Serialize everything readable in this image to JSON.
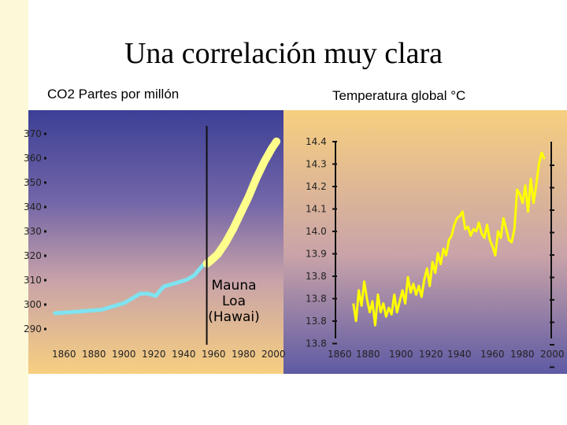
{
  "title": "Una correlación muy clara",
  "chart_data": [
    {
      "type": "line",
      "title": "CO2 Partes por millón",
      "xlabel": "",
      "ylabel": "",
      "x_ticks": [
        "1860",
        "1880",
        "1900",
        "1920",
        "1940",
        "1960",
        "1980",
        "2000"
      ],
      "y_ticks": [
        "370",
        "360",
        "350",
        "340",
        "330",
        "320",
        "310",
        "300",
        "290"
      ],
      "xlim": [
        1855,
        2005
      ],
      "ylim": [
        287,
        373
      ],
      "annotation": "Mauna Loa (Hawai)",
      "marker_year": 1958,
      "series": [
        {
          "name": "ice_core",
          "color": "#7fe3f0",
          "x": [
            1860,
            1870,
            1880,
            1890,
            1900,
            1905,
            1910,
            1915,
            1920,
            1925,
            1930,
            1935,
            1940,
            1945,
            1950,
            1955,
            1958
          ],
          "y": [
            294.5,
            295,
            295.5,
            296,
            298,
            299,
            301,
            303,
            303,
            302,
            306,
            307,
            308,
            309,
            311,
            315,
            317
          ]
        },
        {
          "name": "mauna_loa",
          "color": "#ffff8c",
          "x": [
            1958,
            1960,
            1965,
            1970,
            1975,
            1980,
            1985,
            1990,
            1995,
            2000,
            2003
          ],
          "y": [
            316,
            317,
            320,
            325,
            331,
            338,
            345,
            353,
            360,
            366,
            369
          ]
        }
      ]
    },
    {
      "type": "line",
      "title": "Temperatura global °C",
      "xlabel": "",
      "ylabel": "",
      "x_ticks": [
        "1860",
        "1880",
        "1900",
        "1920",
        "1940",
        "1960",
        "1980",
        "2000"
      ],
      "y_ticks": [
        "14.4",
        "14.3",
        "14.2",
        "14.1",
        "14.0",
        "13.9",
        "13.8",
        "13.8",
        "13.8",
        "13.8"
      ],
      "xlim": [
        1855,
        2005
      ],
      "ylim": [
        13.5,
        14.4
      ],
      "series": [
        {
          "name": "temperatura",
          "color": "#ffff00",
          "x": [
            1860,
            1862,
            1864,
            1866,
            1868,
            1870,
            1872,
            1874,
            1876,
            1878,
            1880,
            1882,
            1884,
            1886,
            1888,
            1890,
            1892,
            1894,
            1896,
            1898,
            1900,
            1902,
            1904,
            1906,
            1908,
            1910,
            1912,
            1914,
            1916,
            1918,
            1920,
            1922,
            1924,
            1926,
            1928,
            1930,
            1932,
            1934,
            1936,
            1938,
            1940,
            1942,
            1944,
            1946,
            1948,
            1950,
            1952,
            1954,
            1956,
            1958,
            1960,
            1962,
            1964,
            1966,
            1968,
            1970,
            1972,
            1974,
            1976,
            1978,
            1980,
            1982,
            1984,
            1986,
            1988,
            1990,
            1992,
            1994,
            1996,
            1998,
            2000
          ],
          "y": [
            13.66,
            13.58,
            13.72,
            13.65,
            13.76,
            13.68,
            13.62,
            13.67,
            13.56,
            13.7,
            13.62,
            13.66,
            13.6,
            13.64,
            13.61,
            13.7,
            13.62,
            13.67,
            13.72,
            13.66,
            13.78,
            13.71,
            13.75,
            13.7,
            13.74,
            13.69,
            13.77,
            13.82,
            13.74,
            13.85,
            13.8,
            13.89,
            13.84,
            13.91,
            13.88,
            13.95,
            13.97,
            14.02,
            14.05,
            14.06,
            14.08,
            14.0,
            14.01,
            13.97,
            14.0,
            13.99,
            14.03,
            13.98,
            13.96,
            14.02,
            13.95,
            13.92,
            13.88,
            13.99,
            13.96,
            14.05,
            14.0,
            13.95,
            13.94,
            14.0,
            14.18,
            14.16,
            14.12,
            14.2,
            14.08,
            14.23,
            14.12,
            14.2,
            14.3,
            14.35,
            14.32
          ]
        }
      ]
    }
  ]
}
